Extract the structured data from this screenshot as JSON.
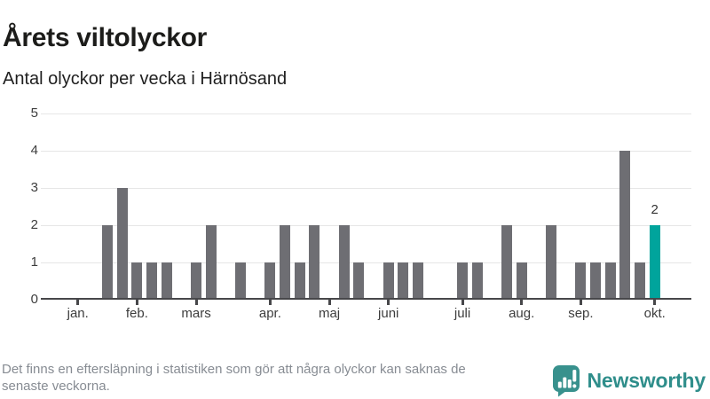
{
  "header": {
    "title": "Årets viltolyckor",
    "subtitle": "Antal olyckor per vecka i Härnösand"
  },
  "chart_data": {
    "type": "bar",
    "title": "Årets viltolyckor",
    "subtitle": "Antal olyckor per vecka i Härnösand",
    "xlabel": "",
    "ylabel": "",
    "ylim": [
      0,
      5
    ],
    "yticks": [
      0,
      1,
      2,
      3,
      4,
      5
    ],
    "grid": "horizontal",
    "x_description": "44 weekly slots from early January through October",
    "values": [
      0,
      0,
      0,
      0,
      2,
      3,
      1,
      1,
      1,
      0,
      1,
      2,
      0,
      1,
      0,
      1,
      2,
      1,
      2,
      0,
      2,
      1,
      0,
      1,
      1,
      1,
      0,
      0,
      1,
      1,
      0,
      2,
      1,
      0,
      2,
      0,
      1,
      1,
      1,
      4,
      1,
      2,
      0,
      0
    ],
    "month_ticks": [
      {
        "label": "jan.",
        "week": 2
      },
      {
        "label": "feb.",
        "week": 6
      },
      {
        "label": "mars",
        "week": 10
      },
      {
        "label": "apr.",
        "week": 15
      },
      {
        "label": "maj",
        "week": 19
      },
      {
        "label": "juni",
        "week": 23
      },
      {
        "label": "juli",
        "week": 28
      },
      {
        "label": "aug.",
        "week": 32
      },
      {
        "label": "sep.",
        "week": 36
      },
      {
        "label": "okt.",
        "week": 41
      }
    ],
    "highlight": {
      "index": 41,
      "value_label": "2"
    },
    "colors": {
      "bar": "#6e6e73",
      "highlight": "#00a49c",
      "gridline": "#e6e6e6",
      "axis": "#47474a"
    },
    "legend": null
  },
  "footer": {
    "lines": [
      "Det finns en eftersläpning i statistiken som gör att några olyckor kan saknas de",
      "senaste veckorna."
    ],
    "brand": {
      "name": "Newsworthy",
      "color": "#2f8e8b",
      "icon": "newsworthy-speech-bubble-bar-chart-icon"
    }
  }
}
